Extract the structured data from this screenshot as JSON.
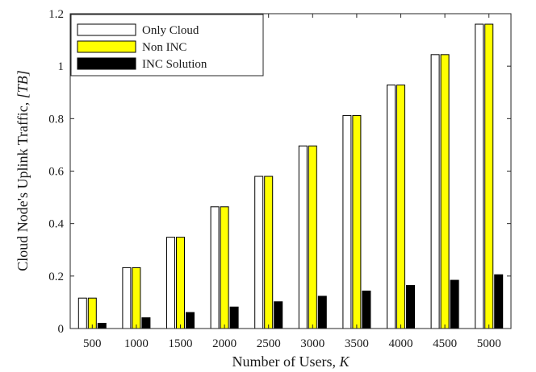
{
  "chart_data": {
    "type": "bar",
    "categories": [
      "500",
      "1000",
      "1500",
      "2000",
      "2500",
      "3000",
      "3500",
      "4000",
      "4500",
      "5000"
    ],
    "series": [
      {
        "name": "Only Cloud",
        "color": "#ffffff",
        "values": [
          0.116,
          0.232,
          0.348,
          0.464,
          0.58,
          0.696,
          0.812,
          0.928,
          1.044,
          1.16
        ]
      },
      {
        "name": "Non INC",
        "color": "#ffff00",
        "values": [
          0.116,
          0.232,
          0.348,
          0.464,
          0.58,
          0.696,
          0.812,
          0.928,
          1.044,
          1.16
        ]
      },
      {
        "name": "INC Solution",
        "color": "#000000",
        "values": [
          0.02,
          0.041,
          0.061,
          0.082,
          0.102,
          0.123,
          0.143,
          0.164,
          0.184,
          0.205
        ]
      }
    ],
    "xlabel_text": "Number of Users, ",
    "xlabel_var": "K",
    "ylabel_text": "Cloud Node's Uplink Traffic, ",
    "ylabel_unit": "[TB]",
    "ylim": [
      0,
      1.2
    ],
    "yticks": [
      "0",
      "0.2",
      "0.4",
      "0.6",
      "0.8",
      "1",
      "1.2"
    ],
    "legend_position": "top-left",
    "grid": false
  }
}
